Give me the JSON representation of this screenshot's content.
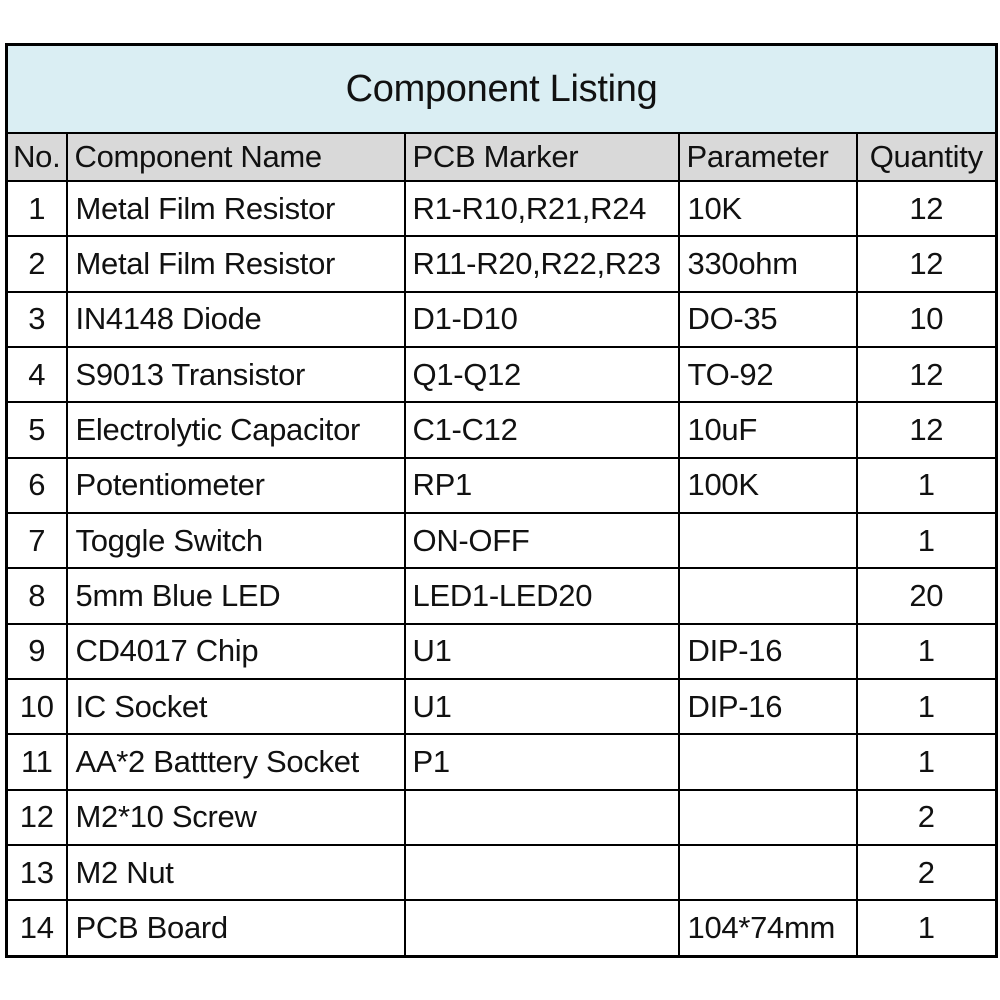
{
  "title": "Component Listing",
  "columns": [
    "No.",
    "Component Name",
    "PCB Marker",
    "Parameter",
    "Quantity"
  ],
  "rows": [
    {
      "no": "1",
      "name": "Metal Film Resistor",
      "pcb_marker": "R1-R10,R21,R24",
      "parameter": "10K",
      "quantity": "12"
    },
    {
      "no": "2",
      "name": "Metal Film Resistor",
      "pcb_marker": "R11-R20,R22,R23",
      "parameter": "330ohm",
      "quantity": "12"
    },
    {
      "no": "3",
      "name": "IN4148 Diode",
      "pcb_marker": "D1-D10",
      "parameter": "DO-35",
      "quantity": "10"
    },
    {
      "no": "4",
      "name": "S9013 Transistor",
      "pcb_marker": "Q1-Q12",
      "parameter": "TO-92",
      "quantity": "12"
    },
    {
      "no": "5",
      "name": "Electrolytic Capacitor",
      "pcb_marker": "C1-C12",
      "parameter": "10uF",
      "quantity": "12"
    },
    {
      "no": "6",
      "name": "Potentiometer",
      "pcb_marker": "RP1",
      "parameter": "100K",
      "quantity": "1"
    },
    {
      "no": "7",
      "name": "Toggle Switch",
      "pcb_marker": "ON-OFF",
      "parameter": "",
      "quantity": "1"
    },
    {
      "no": "8",
      "name": "5mm Blue LED",
      "pcb_marker": "LED1-LED20",
      "parameter": "",
      "quantity": "20"
    },
    {
      "no": "9",
      "name": "CD4017 Chip",
      "pcb_marker": "U1",
      "parameter": "DIP-16",
      "quantity": "1"
    },
    {
      "no": "10",
      "name": "IC Socket",
      "pcb_marker": "U1",
      "parameter": "DIP-16",
      "quantity": "1"
    },
    {
      "no": "11",
      "name": "AA*2 Batttery Socket",
      "pcb_marker": "P1",
      "parameter": "",
      "quantity": "1"
    },
    {
      "no": "12",
      "name": "M2*10 Screw",
      "pcb_marker": "",
      "parameter": "",
      "quantity": "2"
    },
    {
      "no": "13",
      "name": "M2 Nut",
      "pcb_marker": "",
      "parameter": "",
      "quantity": "2"
    },
    {
      "no": "14",
      "name": "PCB Board",
      "pcb_marker": "",
      "parameter": "104*74mm",
      "quantity": "1"
    }
  ],
  "colors": {
    "title_bg": "#daeef3",
    "header_bg": "#d9d9d9",
    "row_bg": "#ffffff",
    "border": "#000000",
    "text": "#111111"
  }
}
